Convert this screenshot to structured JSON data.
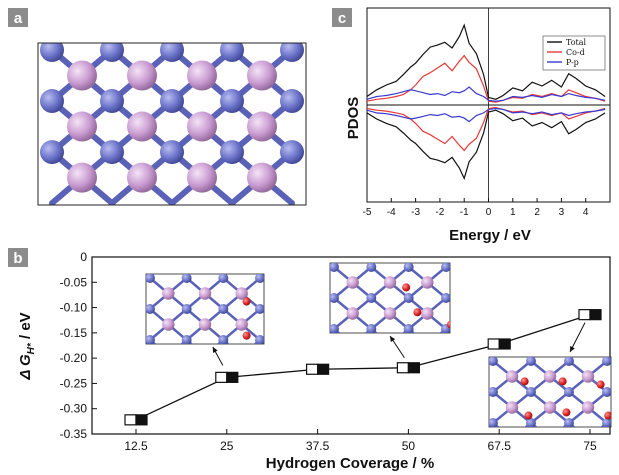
{
  "panels": {
    "a": {
      "letter": "a"
    },
    "b": {
      "letter": "b"
    },
    "c": {
      "letter": "c"
    }
  },
  "colors": {
    "cobalt": "#6a72c8",
    "phosphorus": "#c89ad0",
    "hydrogen": "#e02424",
    "letter_bg": "#8c8c8c",
    "total": "#111111",
    "co_d": "#e8383a",
    "p_p": "#3a3ad0"
  },
  "chart_data": [
    {
      "id": "panel-c",
      "type": "line",
      "xlabel": "Energy / eV",
      "ylabel": "PDOS",
      "xlim": [
        -5,
        5
      ],
      "xticks": [
        "-5",
        "-4",
        "-3",
        "-2",
        "-1",
        "0",
        "1",
        "2",
        "3",
        "4"
      ],
      "x": [
        -5,
        -4.6,
        -4.2,
        -3.8,
        -3.5,
        -3.2,
        -3.0,
        -2.7,
        -2.4,
        -2.1,
        -1.8,
        -1.5,
        -1.2,
        -1.0,
        -0.8,
        -0.5,
        -0.2,
        0,
        0.3,
        0.6,
        1.0,
        1.4,
        1.8,
        2.2,
        2.6,
        3.0,
        3.3,
        3.6,
        4.0,
        4.4,
        4.8
      ],
      "legend": "top-right",
      "series": [
        {
          "name": "Total",
          "color": "#111111",
          "values": [
            0.9,
            1.6,
            2.1,
            2.5,
            3.2,
            4.0,
            4.4,
            5.3,
            6.1,
            6.3,
            6.6,
            6.0,
            7.2,
            8.4,
            6.5,
            5.4,
            3.2,
            0.8,
            0.6,
            1.0,
            1.8,
            1.5,
            2.4,
            2.0,
            2.6,
            1.9,
            3.3,
            2.8,
            2.0,
            1.6,
            0.9
          ]
        },
        {
          "name": "Co-d",
          "color": "#e8383a",
          "values": [
            0.4,
            0.6,
            0.7,
            0.9,
            1.1,
            1.6,
            2.1,
            3.0,
            3.4,
            3.9,
            4.4,
            3.6,
            4.6,
            5.2,
            4.5,
            3.8,
            2.0,
            0.4,
            0.3,
            0.5,
            0.8,
            0.7,
            1.1,
            0.9,
            1.2,
            0.9,
            1.6,
            1.3,
            0.9,
            0.7,
            0.4
          ]
        },
        {
          "name": "P-p",
          "color": "#3a3ad0",
          "values": [
            0.6,
            0.9,
            1.0,
            1.2,
            1.4,
            1.6,
            1.5,
            1.3,
            1.1,
            1.2,
            1.0,
            1.4,
            1.3,
            1.5,
            1.9,
            1.2,
            0.9,
            0.5,
            0.4,
            0.5,
            0.9,
            0.8,
            1.0,
            0.8,
            1.1,
            0.9,
            1.2,
            1.0,
            0.8,
            0.7,
            0.5
          ]
        }
      ]
    },
    {
      "id": "panel-b",
      "type": "line",
      "xlabel": "Hydrogen Coverage / %",
      "ylabel_main": "Δ G",
      "ylabel_sub": "H*",
      "ylabel_unit": " / eV",
      "categories": [
        "12.5",
        "25",
        "37.5",
        "50",
        "67.5",
        "75"
      ],
      "values": [
        -0.322,
        -0.238,
        -0.222,
        -0.219,
        -0.172,
        -0.114
      ],
      "ylim": [
        -0.35,
        0
      ],
      "yticks": [
        "0",
        "-0.05",
        "-0.10",
        "-0.15",
        "-0.20",
        "-0.25",
        "-0.30",
        "-0.35"
      ],
      "ytick_values": [
        0,
        -0.05,
        -0.1,
        -0.15,
        -0.2,
        -0.25,
        -0.3,
        -0.35
      ]
    }
  ]
}
